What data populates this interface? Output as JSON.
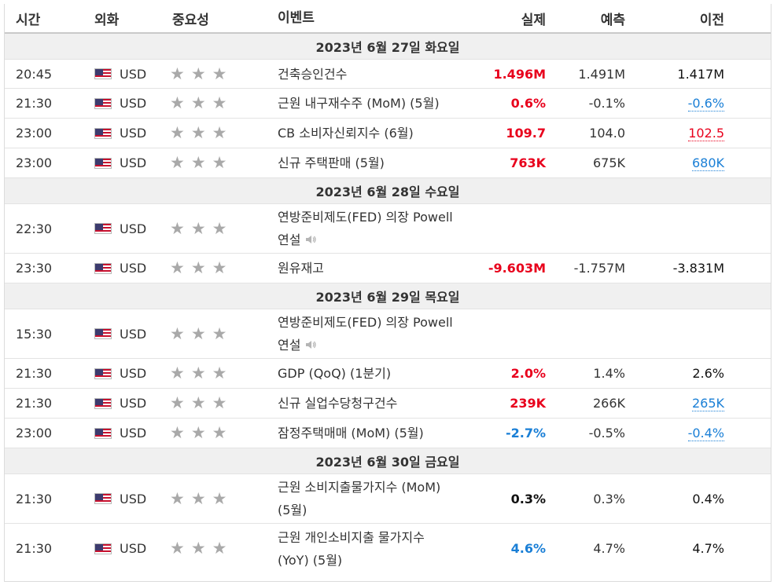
{
  "header": {
    "time": "시간",
    "currency": "외화",
    "importance": "중요성",
    "event": "이벤트",
    "actual": "실제",
    "forecast": "예측",
    "previous": "이전"
  },
  "days": [
    {
      "date": "2023년 6월 27일 화요일",
      "rows": [
        {
          "time": "20:45",
          "currency": "USD",
          "event": "건축승인건수",
          "actual": "1.496M",
          "forecast": "1.491M",
          "previous": "1.417M"
        },
        {
          "time": "21:30",
          "currency": "USD",
          "event": "근원 내구재수주 (MoM) (5월)",
          "actual": "0.6%",
          "forecast": "-0.1%",
          "previous": "-0.6%"
        },
        {
          "time": "23:00",
          "currency": "USD",
          "event": "CB 소비자신뢰지수 (6월)",
          "actual": "109.7",
          "forecast": "104.0",
          "previous": "102.5"
        },
        {
          "time": "23:00",
          "currency": "USD",
          "event": "신규 주택판매 (5월)",
          "actual": "763K",
          "forecast": "675K",
          "previous": "680K"
        }
      ]
    },
    {
      "date": "2023년 6월 28일 수요일",
      "rows": [
        {
          "time": "22:30",
          "currency": "USD",
          "event_line1": "연방준비제도(FED) 의장 Powell",
          "event_line2": "연설"
        },
        {
          "time": "23:30",
          "currency": "USD",
          "event": "원유재고",
          "actual": "-9.603M",
          "forecast": "-1.757M",
          "previous": "-3.831M"
        }
      ]
    },
    {
      "date": "2023년 6월 29일 목요일",
      "rows": [
        {
          "time": "15:30",
          "currency": "USD",
          "event_line1": "연방준비제도(FED) 의장 Powell",
          "event_line2": "연설"
        },
        {
          "time": "21:30",
          "currency": "USD",
          "event": "GDP (QoQ) (1분기)",
          "actual": "2.0%",
          "forecast": "1.4%",
          "previous": "2.6%"
        },
        {
          "time": "21:30",
          "currency": "USD",
          "event": "신규 실업수당청구건수",
          "actual": "239K",
          "forecast": "266K",
          "previous": "265K"
        },
        {
          "time": "23:00",
          "currency": "USD",
          "event": "잠정주택매매 (MoM) (5월)",
          "actual": "-2.7%",
          "forecast": "-0.5%",
          "previous": "-0.4%"
        }
      ]
    },
    {
      "date": "2023년 6월 30일 금요일",
      "rows": [
        {
          "time": "21:30",
          "currency": "USD",
          "event_line1": "근원 소비지출물가지수 (MoM)",
          "event_line2": "(5월)",
          "actual": "0.3%",
          "forecast": "0.3%",
          "previous": "0.4%"
        },
        {
          "time": "21:30",
          "currency": "USD",
          "event_line1": "근원 개인소비지출 물가지수",
          "event_line2": "(YoY) (5월)",
          "actual": "4.6%",
          "forecast": "4.7%",
          "previous": "4.7%"
        }
      ]
    }
  ],
  "importance_stars": 3,
  "colors": {
    "positive": "#e8001c",
    "negative": "#1a7fd6",
    "neutral": "#111111",
    "star": "#a9a9a9",
    "day_bg": "#f0f0f0"
  },
  "icons": {
    "flag": "us-flag-icon",
    "star": "star-icon",
    "speaker": "speaker-icon"
  }
}
